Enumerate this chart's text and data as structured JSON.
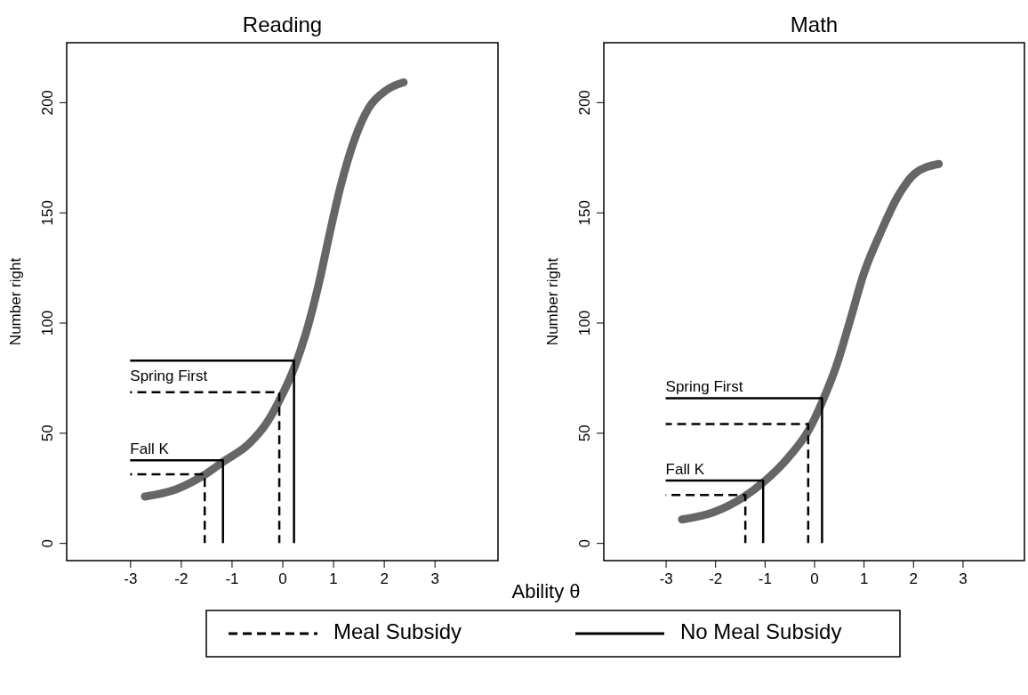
{
  "chart_data": [
    {
      "type": "line",
      "title": "Reading",
      "xlabel": "Ability θ",
      "ylabel": "Number right",
      "xlim": [
        -4.25,
        4.25
      ],
      "ylim": [
        -8,
        227
      ],
      "xticks": [
        -3,
        -2,
        -1,
        0,
        1,
        2,
        3
      ],
      "yticks": [
        0,
        50,
        100,
        150,
        200
      ],
      "grid": false,
      "legend": "bottom",
      "marker": "none",
      "annotations": [
        "Spring First",
        "Fall K"
      ],
      "series": [
        {
          "color": "#666666",
          "line_style": "solid",
          "x": [
            -2.71,
            -2.1,
            -1.55,
            -1.17,
            -0.65,
            -0.3,
            -0.03,
            0.25,
            0.46,
            0.73,
            0.94,
            1.15,
            1.42,
            1.7,
            2.04,
            2.39
          ],
          "values": [
            21.1,
            24.3,
            30.7,
            36.8,
            45.2,
            54.8,
            66,
            80.4,
            94.8,
            118.8,
            141.2,
            162,
            182.9,
            197.3,
            205.3,
            209
          ]
        },
        {
          "name": "Meal Subsidy",
          "color": "#000000",
          "line_style": "dashed",
          "x": [
            -3,
            -0.06,
            -0.06
          ],
          "values": [
            68.4,
            68.4,
            0
          ]
        },
        {
          "name": "No Meal Subsidy",
          "color": "#000000",
          "line_style": "solid",
          "x": [
            -3,
            0.23,
            0.23
          ],
          "values": [
            82.8,
            82.8,
            0
          ]
        },
        {
          "color": "#000000",
          "line_style": "dashed",
          "x": [
            -3,
            -1.53,
            -1.53
          ],
          "values": [
            31.2,
            31.2,
            0
          ]
        },
        {
          "color": "#000000",
          "line_style": "solid",
          "x": [
            -3,
            -1.17,
            -1.17
          ],
          "values": [
            37.5,
            37.5,
            0
          ]
        }
      ]
    },
    {
      "type": "line",
      "title": "Math",
      "ylabel": "Number right",
      "xlim": [
        -4.25,
        4.25
      ],
      "ylim": [
        -8,
        227
      ],
      "xticks": [
        -3,
        -2,
        -1,
        0,
        1,
        2,
        3
      ],
      "yticks": [
        0,
        50,
        100,
        150,
        200
      ],
      "grid": false,
      "legend": "bottom",
      "marker": "none",
      "annotations": [
        "Spring First",
        "Fall K"
      ],
      "series": [
        {
          "color": "#666666",
          "line_style": "solid",
          "x": [
            -2.67,
            -2.04,
            -1.41,
            -1.03,
            -0.52,
            -0.1,
            0.17,
            0.45,
            0.73,
            1,
            1.35,
            1.69,
            2.04,
            2.52
          ],
          "values": [
            10.7,
            13.9,
            21.1,
            27.5,
            38.8,
            51.6,
            64.4,
            80.4,
            101.2,
            122,
            141.2,
            157.2,
            167.7,
            172
          ]
        },
        {
          "name": "Meal Subsidy",
          "color": "#000000",
          "line_style": "dashed",
          "x": [
            -3,
            -0.12,
            -0.12
          ],
          "values": [
            54,
            54,
            0
          ]
        },
        {
          "name": "No Meal Subsidy",
          "color": "#000000",
          "line_style": "solid",
          "x": [
            -3,
            0.16,
            0.16
          ],
          "values": [
            65.7,
            65.7,
            0
          ]
        },
        {
          "color": "#000000",
          "line_style": "dashed",
          "x": [
            -3,
            -1.39,
            -1.39
          ],
          "values": [
            21.8,
            21.8,
            0
          ]
        },
        {
          "color": "#000000",
          "line_style": "solid",
          "x": [
            -3,
            -1.03,
            -1.03
          ],
          "values": [
            28.3,
            28.3,
            0
          ]
        }
      ]
    }
  ]
}
